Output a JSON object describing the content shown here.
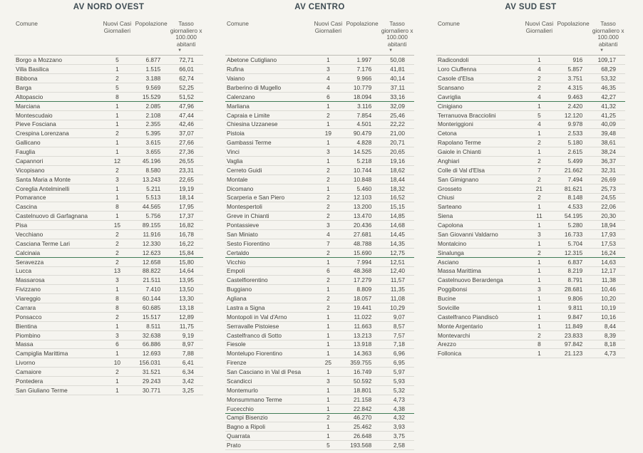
{
  "colors": {
    "background": "#f5f4ef",
    "title": "#3d4b52",
    "body_text": "#3e3e39",
    "band_green": "#417c57",
    "row_line": "#dbdad4"
  },
  "columns": {
    "comune": "Comune",
    "nuovi_casi": "Nuovi Casi Giornalieri",
    "popolazione": "Popolazione",
    "tasso": "Tasso giornaliero x 100.000 abitanti"
  },
  "sort_icon": "▼",
  "band_separator_after_rows": [
    5,
    22,
    39
  ],
  "tables": [
    {
      "title": "AV NORD OVEST",
      "rows": [
        [
          "Borgo a Mozzano",
          "5",
          "6.877",
          "72,71"
        ],
        [
          "Villa Basilica",
          "1",
          "1.515",
          "66,01"
        ],
        [
          "Bibbona",
          "2",
          "3.188",
          "62,74"
        ],
        [
          "Barga",
          "5",
          "9.569",
          "52,25"
        ],
        [
          "Altopascio",
          "8",
          "15.529",
          "51,52"
        ],
        [
          "Marciana",
          "1",
          "2.085",
          "47,96"
        ],
        [
          "Montescudaio",
          "1",
          "2.108",
          "47,44"
        ],
        [
          "Pieve Fosciana",
          "1",
          "2.355",
          "42,46"
        ],
        [
          "Crespina Lorenzana",
          "2",
          "5.395",
          "37,07"
        ],
        [
          "Gallicano",
          "1",
          "3.615",
          "27,66"
        ],
        [
          "Fauglia",
          "1",
          "3.655",
          "27,36"
        ],
        [
          "Capannori",
          "12",
          "45.196",
          "26,55"
        ],
        [
          "Vicopisano",
          "2",
          "8.580",
          "23,31"
        ],
        [
          "Santa Maria a Monte",
          "3",
          "13.243",
          "22,65"
        ],
        [
          "Coreglia Antelminelli",
          "1",
          "5.211",
          "19,19"
        ],
        [
          "Pomarance",
          "1",
          "5.513",
          "18,14"
        ],
        [
          "Cascina",
          "8",
          "44.565",
          "17,95"
        ],
        [
          "Castelnuovo di Garfagnana",
          "1",
          "5.756",
          "17,37"
        ],
        [
          "Pisa",
          "15",
          "89.155",
          "16,82"
        ],
        [
          "Vecchiano",
          "2",
          "11.916",
          "16,78"
        ],
        [
          "Casciana Terme Lari",
          "2",
          "12.330",
          "16,22"
        ],
        [
          "Calcinaia",
          "2",
          "12.623",
          "15,84"
        ],
        [
          "Seravezza",
          "2",
          "12.658",
          "15,80"
        ],
        [
          "Lucca",
          "13",
          "88.822",
          "14,64"
        ],
        [
          "Massarosa",
          "3",
          "21.511",
          "13,95"
        ],
        [
          "Fivizzano",
          "1",
          "7.410",
          "13,50"
        ],
        [
          "Viareggio",
          "8",
          "60.144",
          "13,30"
        ],
        [
          "Carrara",
          "8",
          "60.685",
          "13,18"
        ],
        [
          "Ponsacco",
          "2",
          "15.517",
          "12,89"
        ],
        [
          "Bientina",
          "1",
          "8.511",
          "11,75"
        ],
        [
          "Piombino",
          "3",
          "32.638",
          "9,19"
        ],
        [
          "Massa",
          "6",
          "66.886",
          "8,97"
        ],
        [
          "Campiglia Marittima",
          "1",
          "12.693",
          "7,88"
        ],
        [
          "Livorno",
          "10",
          "156.031",
          "6,41"
        ],
        [
          "Camaiore",
          "2",
          "31.521",
          "6,34"
        ],
        [
          "Pontedera",
          "1",
          "29.243",
          "3,42"
        ],
        [
          "San Giuliano Terme",
          "1",
          "30.771",
          "3,25"
        ]
      ]
    },
    {
      "title": "AV CENTRO",
      "rows": [
        [
          "Abetone Cutigliano",
          "1",
          "1.997",
          "50,08"
        ],
        [
          "Rufina",
          "3",
          "7.176",
          "41,81"
        ],
        [
          "Vaiano",
          "4",
          "9.966",
          "40,14"
        ],
        [
          "Barberino di Mugello",
          "4",
          "10.779",
          "37,11"
        ],
        [
          "Calenzano",
          "6",
          "18.094",
          "33,16"
        ],
        [
          "Marliana",
          "1",
          "3.116",
          "32,09"
        ],
        [
          "Capraia e Limite",
          "2",
          "7.854",
          "25,46"
        ],
        [
          "Chiesina Uzzanese",
          "1",
          "4.501",
          "22,22"
        ],
        [
          "Pistoia",
          "19",
          "90.479",
          "21,00"
        ],
        [
          "Gambassi Terme",
          "1",
          "4.828",
          "20,71"
        ],
        [
          "Vinci",
          "3",
          "14.525",
          "20,65"
        ],
        [
          "Vaglia",
          "1",
          "5.218",
          "19,16"
        ],
        [
          "Cerreto Guidi",
          "2",
          "10.744",
          "18,62"
        ],
        [
          "Montale",
          "2",
          "10.848",
          "18,44"
        ],
        [
          "Dicomano",
          "1",
          "5.460",
          "18,32"
        ],
        [
          "Scarperia e San Piero",
          "2",
          "12.103",
          "16,52"
        ],
        [
          "Montespertoli",
          "2",
          "13.200",
          "15,15"
        ],
        [
          "Greve in Chianti",
          "2",
          "13.470",
          "14,85"
        ],
        [
          "Pontassieve",
          "3",
          "20.436",
          "14,68"
        ],
        [
          "San Miniato",
          "4",
          "27.681",
          "14,45"
        ],
        [
          "Sesto Fiorentino",
          "7",
          "48.788",
          "14,35"
        ],
        [
          "Certaldo",
          "2",
          "15.690",
          "12,75"
        ],
        [
          "Vicchio",
          "1",
          "7.994",
          "12,51"
        ],
        [
          "Empoli",
          "6",
          "48.368",
          "12,40"
        ],
        [
          "Castelfiorentino",
          "2",
          "17.279",
          "11,57"
        ],
        [
          "Buggiano",
          "1",
          "8.809",
          "11,35"
        ],
        [
          "Agliana",
          "2",
          "18.057",
          "11,08"
        ],
        [
          "Lastra a Signa",
          "2",
          "19.441",
          "10,29"
        ],
        [
          "Montopoli in Val d'Arno",
          "1",
          "11.022",
          "9,07"
        ],
        [
          "Serravalle Pistoiese",
          "1",
          "11.663",
          "8,57"
        ],
        [
          "Castelfranco di Sotto",
          "1",
          "13.213",
          "7,57"
        ],
        [
          "Fiesole",
          "1",
          "13.918",
          "7,18"
        ],
        [
          "Montelupo Fiorentino",
          "1",
          "14.363",
          "6,96"
        ],
        [
          "Firenze",
          "25",
          "359.755",
          "6,95"
        ],
        [
          "San Casciano in Val di Pesa",
          "1",
          "16.749",
          "5,97"
        ],
        [
          "Scandicci",
          "3",
          "50.592",
          "5,93"
        ],
        [
          "Montemurlo",
          "1",
          "18.801",
          "5,32"
        ],
        [
          "Monsummano Terme",
          "1",
          "21.158",
          "4,73"
        ],
        [
          "Fucecchio",
          "1",
          "22.842",
          "4,38"
        ],
        [
          "Campi Bisenzio",
          "2",
          "46.270",
          "4,32"
        ],
        [
          "Bagno a Ripoli",
          "1",
          "25.462",
          "3,93"
        ],
        [
          "Quarrata",
          "1",
          "26.648",
          "3,75"
        ],
        [
          "Prato",
          "5",
          "193.568",
          "2,58"
        ]
      ]
    },
    {
      "title": "AV SUD EST",
      "rows": [
        [
          "Radicondoli",
          "1",
          "916",
          "109,17"
        ],
        [
          "Loro Ciuffenna",
          "4",
          "5.857",
          "68,29"
        ],
        [
          "Casole d'Elsa",
          "2",
          "3.751",
          "53,32"
        ],
        [
          "Scansano",
          "2",
          "4.315",
          "46,35"
        ],
        [
          "Cavriglia",
          "4",
          "9.463",
          "42,27"
        ],
        [
          "Cinigiano",
          "1",
          "2.420",
          "41,32"
        ],
        [
          "Terranuova Bracciolini",
          "5",
          "12.120",
          "41,25"
        ],
        [
          "Monteriggioni",
          "4",
          "9.978",
          "40,09"
        ],
        [
          "Cetona",
          "1",
          "2.533",
          "39,48"
        ],
        [
          "Rapolano Terme",
          "2",
          "5.180",
          "38,61"
        ],
        [
          "Gaiole in Chianti",
          "1",
          "2.615",
          "38,24"
        ],
        [
          "Anghiari",
          "2",
          "5.499",
          "36,37"
        ],
        [
          "Colle di Val d'Elsa",
          "7",
          "21.662",
          "32,31"
        ],
        [
          "San Gimignano",
          "2",
          "7.494",
          "26,69"
        ],
        [
          "Grosseto",
          "21",
          "81.621",
          "25,73"
        ],
        [
          "Chiusi",
          "2",
          "8.148",
          "24,55"
        ],
        [
          "Sarteano",
          "1",
          "4.533",
          "22,06"
        ],
        [
          "Siena",
          "11",
          "54.195",
          "20,30"
        ],
        [
          "Capolona",
          "1",
          "5.280",
          "18,94"
        ],
        [
          "San Giovanni Valdarno",
          "3",
          "16.733",
          "17,93"
        ],
        [
          "Montalcino",
          "1",
          "5.704",
          "17,53"
        ],
        [
          "Sinalunga",
          "2",
          "12.315",
          "16,24"
        ],
        [
          "Asciano",
          "1",
          "6.837",
          "14,63"
        ],
        [
          "Massa Marittima",
          "1",
          "8.219",
          "12,17"
        ],
        [
          "Castelnuovo Berardenga",
          "1",
          "8.791",
          "11,38"
        ],
        [
          "Poggibonsi",
          "3",
          "28.681",
          "10,46"
        ],
        [
          "Bucine",
          "1",
          "9.806",
          "10,20"
        ],
        [
          "Sovicille",
          "1",
          "9.811",
          "10,19"
        ],
        [
          "Castelfranco Piandiscò",
          "1",
          "9.847",
          "10,16"
        ],
        [
          "Monte Argentario",
          "1",
          "11.849",
          "8,44"
        ],
        [
          "Montevarchi",
          "2",
          "23.833",
          "8,39"
        ],
        [
          "Arezzo",
          "8",
          "97.842",
          "8,18"
        ],
        [
          "Follonica",
          "1",
          "21.123",
          "4,73"
        ]
      ]
    }
  ]
}
